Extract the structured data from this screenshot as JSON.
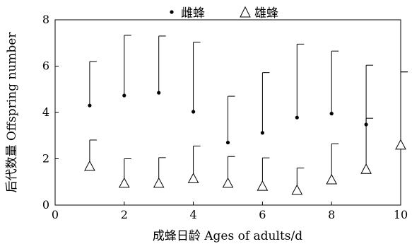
{
  "chart_data": {
    "type": "scatter",
    "xlabel": "成蜂日龄 Ages of adults/d",
    "ylabel": "后代数量 Offspring number",
    "xlim": [
      0,
      10
    ],
    "ylim": [
      0,
      8
    ],
    "x_ticks": [
      "0",
      "2",
      "4",
      "6",
      "8",
      "10"
    ],
    "y_ticks": [
      "0",
      "2",
      "4",
      "6",
      "8"
    ],
    "legend_position": "top-center",
    "series": [
      {
        "name": "雌蜂",
        "marker": "filled-dot",
        "error_direction": "up",
        "points": [
          {
            "x": 1,
            "y": 4.3,
            "err": 1.9
          },
          {
            "x": 2,
            "y": 4.73,
            "err": 2.6
          },
          {
            "x": 3,
            "y": 4.85,
            "err": 2.45
          },
          {
            "x": 4,
            "y": 4.03,
            "err": 3.0
          },
          {
            "x": 5,
            "y": 2.7,
            "err": 2.0
          },
          {
            "x": 6,
            "y": 3.12,
            "err": 2.6
          },
          {
            "x": 7,
            "y": 3.78,
            "err": 3.17
          },
          {
            "x": 8,
            "y": 3.95,
            "err": 2.7
          },
          {
            "x": 9,
            "y": 3.48,
            "err": 2.56
          },
          {
            "x": 10,
            "y": 2.65,
            "err": 3.1
          }
        ]
      },
      {
        "name": "雄蜂",
        "marker": "open-triangle",
        "error_direction": "up",
        "points": [
          {
            "x": 1,
            "y": 1.68,
            "err": 1.13
          },
          {
            "x": 2,
            "y": 0.95,
            "err": 1.05
          },
          {
            "x": 3,
            "y": 0.95,
            "err": 1.1
          },
          {
            "x": 4,
            "y": 1.15,
            "err": 1.4
          },
          {
            "x": 5,
            "y": 0.95,
            "err": 1.15
          },
          {
            "x": 6,
            "y": 0.82,
            "err": 1.22
          },
          {
            "x": 7,
            "y": 0.65,
            "err": 0.95
          },
          {
            "x": 8,
            "y": 1.1,
            "err": 1.55
          },
          {
            "x": 9,
            "y": 1.55,
            "err": 2.2
          },
          {
            "x": 10,
            "y": 2.6,
            "err": 3.15
          }
        ]
      }
    ]
  }
}
